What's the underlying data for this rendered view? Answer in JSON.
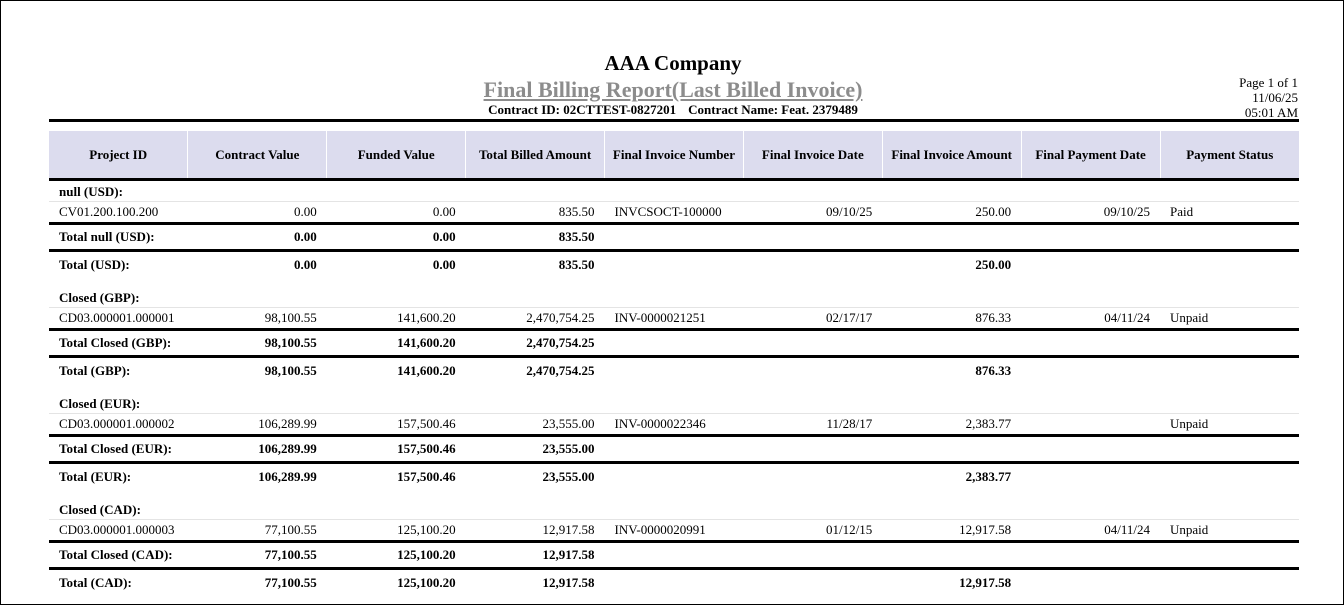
{
  "report": {
    "company": "AAA Company",
    "title": "Final Billing Report(Last Billed Invoice)",
    "contract_id": "Contract ID: 02CTTEST-0827201",
    "contract_name": "Contract Name: Feat. 2379489",
    "page": "Page 1 of 1",
    "date": "11/06/25",
    "time": "05:01 AM"
  },
  "columns": [
    "Project ID",
    "Contract Value",
    "Funded Value",
    "Total Billed Amount",
    "Final Invoice Number",
    "Final Invoice Date",
    "Final Invoice Amount",
    "Final Payment Date",
    "Payment Status"
  ],
  "groups": [
    {
      "label": "null (USD):",
      "row": [
        "CV01.200.100.200",
        "0.00",
        "0.00",
        "835.50",
        "INVCSOCT-100000",
        "09/10/25",
        "250.00",
        "09/10/25",
        "Paid"
      ],
      "subtotal": [
        "Total null (USD):",
        "0.00",
        "0.00",
        "835.50"
      ],
      "total": [
        "Total (USD):",
        "0.00",
        "0.00",
        "835.50",
        "250.00"
      ]
    },
    {
      "label": "Closed (GBP):",
      "row": [
        "CD03.000001.000001",
        "98,100.55",
        "141,600.20",
        "2,470,754.25",
        "INV-0000021251",
        "02/17/17",
        "876.33",
        "04/11/24",
        "Unpaid"
      ],
      "subtotal": [
        "Total Closed (GBP):",
        "98,100.55",
        "141,600.20",
        "2,470,754.25"
      ],
      "total": [
        "Total (GBP):",
        "98,100.55",
        "141,600.20",
        "2,470,754.25",
        "876.33"
      ]
    },
    {
      "label": "Closed (EUR):",
      "row": [
        "CD03.000001.000002",
        "106,289.99",
        "157,500.46",
        "23,555.00",
        "INV-0000022346",
        "11/28/17",
        "2,383.77",
        "",
        "Unpaid"
      ],
      "subtotal": [
        "Total Closed (EUR):",
        "106,289.99",
        "157,500.46",
        "23,555.00"
      ],
      "total": [
        "Total (EUR):",
        "106,289.99",
        "157,500.46",
        "23,555.00",
        "2,383.77"
      ]
    },
    {
      "label": "Closed (CAD):",
      "row": [
        "CD03.000001.000003",
        "77,100.55",
        "125,100.20",
        "12,917.58",
        "INV-0000020991",
        "01/12/15",
        "12,917.58",
        "04/11/24",
        "Unpaid"
      ],
      "subtotal": [
        "Total Closed (CAD):",
        "77,100.55",
        "125,100.20",
        "12,917.58"
      ],
      "total": [
        "Total (CAD):",
        "77,100.55",
        "125,100.20",
        "12,917.58",
        "12,917.58"
      ]
    }
  ]
}
